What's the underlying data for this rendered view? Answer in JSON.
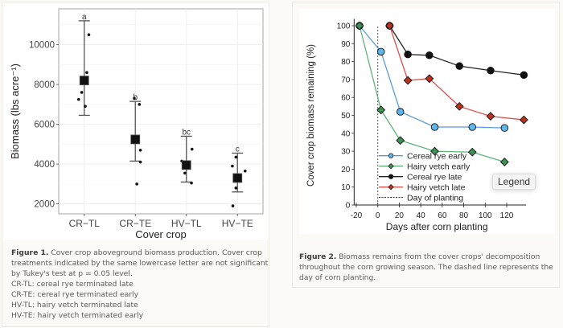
{
  "figure1": {
    "caption_label": "Figure 1.",
    "caption_text": " Cover crop aboveground biomass production. Cover crop treatments indicated by the same lowercase letter are not significant by Tukey's test at p = 0.05 level.",
    "caption_lines": [
      "CR-TL: cereal rye terminated late",
      "CR-TE: cereal rye terminated early",
      "HV-TL: hairy vetch terminated late",
      "HV-TE: hairy vetch terminated early"
    ]
  },
  "figure2": {
    "caption_label": "Figure 2.",
    "caption_text": " Biomass remains from the cover crops' decomposition throughout the corn growing season. The dashed line represents the day of corn planting.",
    "legend_tooltip": "Legend"
  },
  "chart_data": [
    {
      "type": "scatter",
      "title": "",
      "xlabel": "Cover crop",
      "ylabel": "Biomass  (lbs acre⁻¹)",
      "ylim": [
        1500,
        11800
      ],
      "yticks": [
        2000,
        4000,
        6000,
        8000,
        10000
      ],
      "ytick_labels": [
        "2000",
        "4000",
        "6000",
        "8000",
        "10000"
      ],
      "grid": true,
      "categories": [
        "CR−TL",
        "CR−TE",
        "HV−TL",
        "HV−TE"
      ],
      "groups": [
        {
          "category": "CR−TL",
          "letter": "a",
          "mean": 8200,
          "ci_low": 6450,
          "ci_high": 11200,
          "points": [
            10500,
            8600,
            7600,
            7250,
            6900
          ]
        },
        {
          "category": "CR−TE",
          "letter": "b",
          "mean": 5240,
          "ci_low": 4150,
          "ci_high": 7150,
          "points": [
            7300,
            7000,
            4700,
            4100,
            3000
          ]
        },
        {
          "category": "HV−TL",
          "letter": "bc",
          "mean": 3950,
          "ci_low": 3100,
          "ci_high": 5400,
          "points": [
            4750,
            4150,
            4050,
            3550,
            3050
          ]
        },
        {
          "category": "HV−TE",
          "letter": "c",
          "mean": 3300,
          "ci_low": 2600,
          "ci_high": 4550,
          "points": [
            4350,
            3900,
            3650,
            2800,
            1900
          ]
        }
      ]
    },
    {
      "type": "line",
      "title": "",
      "xlabel": "Days after corn planting",
      "ylabel": "Cover crop biomass remaining (%)",
      "xlim": [
        -22,
        138
      ],
      "ylim": [
        0,
        102
      ],
      "xticks": [
        -20,
        0,
        20,
        40,
        60,
        80,
        100,
        120
      ],
      "xtick_labels": [
        "-20",
        "0",
        "20",
        "40",
        "60",
        "80",
        "100",
        "120"
      ],
      "yticks": [
        0,
        10,
        20,
        30,
        40,
        50,
        60,
        70,
        80,
        90,
        100
      ],
      "ytick_labels": [
        "0",
        "10",
        "20",
        "30",
        "40",
        "50",
        "60",
        "70",
        "80",
        "90",
        "100"
      ],
      "grid": false,
      "legend_position": "bottom-left",
      "reference_line": {
        "x": 0,
        "label": "Day of planting",
        "style": "dashed"
      },
      "series": [
        {
          "name": "Cereal rye early",
          "color": "#5b9bd5",
          "marker": "circle",
          "marker_color": "#5fb6ec",
          "x": [
            -17,
            3,
            21,
            53,
            88,
            118
          ],
          "y": [
            100,
            85.5,
            52,
            43.5,
            43.5,
            43
          ]
        },
        {
          "name": "Hairy vetch early",
          "color": "#5fb37a",
          "marker": "diamond",
          "marker_color": "#3f8f52",
          "x": [
            -17,
            3,
            21,
            53,
            88,
            118
          ],
          "y": [
            100,
            53,
            36,
            30,
            29.5,
            24
          ]
        },
        {
          "name": "Cereal rye late",
          "color": "#222222",
          "marker": "circle",
          "marker_color": "#111111",
          "x": [
            11,
            28,
            48,
            76,
            105,
            136
          ],
          "y": [
            100,
            84,
            83.5,
            77.5,
            75,
            72.5
          ]
        },
        {
          "name": "Hairy vetch late",
          "color": "#d9534f",
          "marker": "diamond",
          "marker_color": "#b83220",
          "x": [
            11,
            28,
            48,
            76,
            105,
            136
          ],
          "y": [
            100,
            69.5,
            70.5,
            55,
            49.5,
            47.5
          ]
        }
      ]
    }
  ]
}
